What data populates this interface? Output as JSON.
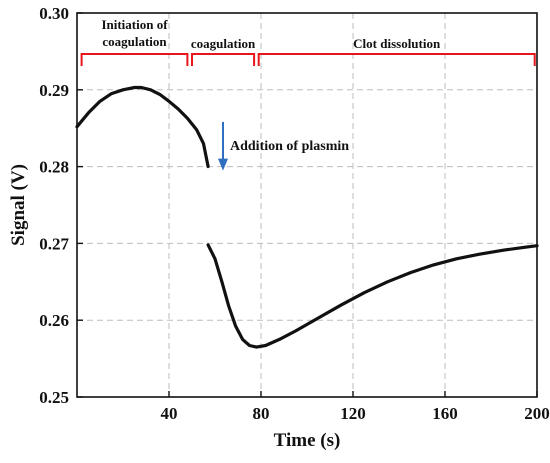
{
  "chart_data": {
    "type": "line",
    "xlabel": "Time (s)",
    "ylabel": "Signal (V)",
    "xlim": [
      0,
      200
    ],
    "ylim": [
      0.25,
      0.3
    ],
    "x_ticks": [
      40,
      80,
      120,
      160,
      200
    ],
    "x_tick_labels": [
      "40",
      "80",
      "120",
      "160",
      "200"
    ],
    "y_ticks": [
      0.25,
      0.26,
      0.27,
      0.28,
      0.29,
      0.3
    ],
    "y_tick_labels": [
      "0.25",
      "0.26",
      "0.27",
      "0.28",
      "0.29",
      "0.30"
    ],
    "grid": true,
    "series": [
      {
        "segment": "before-plasmin",
        "color": "#111111",
        "x": [
          0,
          5,
          10,
          15,
          20,
          25,
          28,
          32,
          36,
          40,
          44,
          48,
          52,
          55,
          57
        ],
        "y": [
          0.2852,
          0.287,
          0.2885,
          0.2895,
          0.29,
          0.2903,
          0.2903,
          0.29,
          0.2894,
          0.2885,
          0.2875,
          0.2863,
          0.2848,
          0.283,
          0.28
        ]
      },
      {
        "segment": "after-plasmin",
        "color": "#111111",
        "x": [
          57,
          60,
          63,
          66,
          69,
          72,
          75,
          78,
          82,
          88,
          95,
          105,
          115,
          125,
          135,
          145,
          155,
          165,
          175,
          185,
          195,
          200
        ],
        "y": [
          0.2698,
          0.268,
          0.265,
          0.2618,
          0.2592,
          0.2575,
          0.2567,
          0.2565,
          0.2567,
          0.2575,
          0.2586,
          0.2603,
          0.262,
          0.2636,
          0.265,
          0.2662,
          0.2672,
          0.268,
          0.2686,
          0.2691,
          0.2695,
          0.2697
        ]
      }
    ],
    "phases": [
      {
        "label": "Initiation of\ncoagulation",
        "x_start": 2,
        "x_end": 48
      },
      {
        "label": "coagulation",
        "x_start": 50,
        "x_end": 77
      },
      {
        "label": "Clot dissolution",
        "x_start": 79,
        "x_end": 199
      }
    ],
    "phase_color": "#e8161b",
    "annotation": {
      "label": "Addition of plasmin",
      "x": 60,
      "y_from": 0.2853,
      "y_to": 0.28,
      "arrow_color": "#2f6fbf"
    }
  }
}
